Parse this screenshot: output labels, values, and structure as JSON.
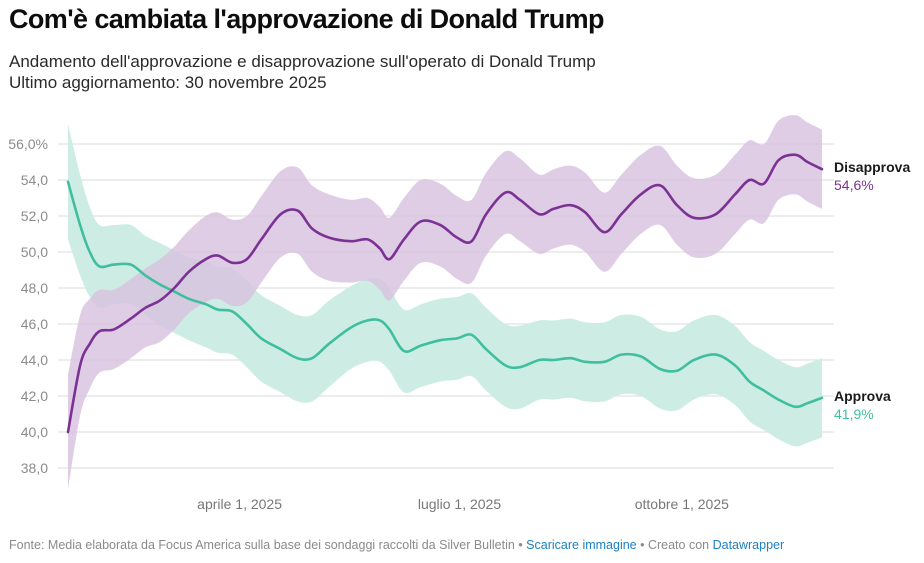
{
  "header": {
    "title": "Com'è cambiata l'approvazione di Donald Trump",
    "subtitle": "Andamento dell'approvazione e disapprovazione sull'operato di Donald Trump",
    "updated": "Ultimo aggiornamento: 30 novembre 2025"
  },
  "footer": {
    "source": "Fonte: Media elaborata da Focus America sulla base dei sondaggi raccolti da Silver Bulletin",
    "sep1": " • ",
    "download_link": "Scaricare immagine",
    "sep2": " • Creato con ",
    "credit_link": "Datawrapper"
  },
  "chart_data": {
    "type": "line",
    "title": "Com'è cambiata l'approvazione di Donald Trump",
    "xlabel": "",
    "ylabel": "",
    "ylim": [
      37,
      57.5
    ],
    "xlim": [
      "2025-01-20",
      "2025-11-28"
    ],
    "grid": true,
    "legend": "direct-labels-right",
    "y_ticks": [
      38,
      40,
      42,
      44,
      46,
      48,
      50,
      52,
      54,
      56
    ],
    "y_tick_labels": [
      "38,0",
      "40,0",
      "42,0",
      "44,0",
      "46,0",
      "48,0",
      "50,0",
      "52,0",
      "54,0",
      "56,0%"
    ],
    "x_ticks": [
      "2025-04-01",
      "2025-07-01",
      "2025-10-01"
    ],
    "x_tick_labels": [
      "aprile 1, 2025",
      "luglio 1, 2025",
      "ottobre 1, 2025"
    ],
    "x": [
      "2025-01-20",
      "2025-01-25",
      "2025-01-29",
      "2025-02-02",
      "2025-02-08",
      "2025-02-15",
      "2025-02-21",
      "2025-02-27",
      "2025-03-05",
      "2025-03-11",
      "2025-03-18",
      "2025-03-23",
      "2025-03-29",
      "2025-04-04",
      "2025-04-10",
      "2025-04-18",
      "2025-04-25",
      "2025-05-01",
      "2025-05-08",
      "2025-05-17",
      "2025-05-24",
      "2025-05-29",
      "2025-06-02",
      "2025-06-08",
      "2025-06-15",
      "2025-06-23",
      "2025-06-30",
      "2025-07-06",
      "2025-07-12",
      "2025-07-20",
      "2025-07-26",
      "2025-08-03",
      "2025-08-09",
      "2025-08-16",
      "2025-08-22",
      "2025-08-30",
      "2025-09-06",
      "2025-09-14",
      "2025-09-22",
      "2025-09-29",
      "2025-10-06",
      "2025-10-15",
      "2025-10-23",
      "2025-10-29",
      "2025-11-04",
      "2025-11-10",
      "2025-11-17",
      "2025-11-22",
      "2025-11-28"
    ],
    "series": [
      {
        "name": "Disapprova",
        "last_label": "54,6%",
        "color": "#7b3294",
        "band_color": "#d8c2df",
        "values": [
          40.0,
          43.7,
          44.9,
          45.6,
          45.7,
          46.3,
          46.9,
          47.3,
          48.0,
          48.9,
          49.6,
          49.8,
          49.4,
          49.6,
          50.7,
          52.1,
          52.3,
          51.3,
          50.8,
          50.6,
          50.7,
          50.2,
          49.6,
          50.7,
          51.7,
          51.5,
          50.8,
          50.6,
          52.1,
          53.3,
          52.9,
          52.1,
          52.4,
          52.6,
          52.2,
          51.1,
          52.1,
          53.2,
          53.7,
          52.6,
          51.9,
          52.1,
          53.2,
          54.0,
          53.8,
          55.1,
          55.4,
          55.0,
          54.6
        ],
        "margin": [
          3.2,
          2.8,
          2.5,
          2.3,
          2.2,
          2.2,
          2.2,
          2.3,
          2.3,
          2.3,
          2.4,
          2.4,
          2.4,
          2.4,
          2.4,
          2.4,
          2.4,
          2.4,
          2.4,
          2.3,
          2.3,
          2.3,
          2.3,
          2.3,
          2.3,
          2.3,
          2.3,
          2.3,
          2.3,
          2.3,
          2.3,
          2.2,
          2.2,
          2.2,
          2.2,
          2.2,
          2.2,
          2.2,
          2.2,
          2.2,
          2.2,
          2.2,
          2.2,
          2.2,
          2.2,
          2.2,
          2.2,
          2.2,
          2.2
        ]
      },
      {
        "name": "Approva",
        "last_label": "41,9%",
        "color": "#3fbf9f",
        "band_color": "#cdede4",
        "values": [
          53.9,
          51.5,
          50.0,
          49.2,
          49.3,
          49.3,
          48.7,
          48.2,
          47.8,
          47.4,
          47.1,
          46.8,
          46.7,
          46.0,
          45.2,
          44.6,
          44.1,
          44.1,
          44.9,
          45.8,
          46.2,
          46.2,
          45.7,
          44.5,
          44.8,
          45.1,
          45.2,
          45.4,
          44.6,
          43.7,
          43.6,
          44.0,
          44.0,
          44.1,
          43.9,
          43.9,
          44.3,
          44.2,
          43.5,
          43.4,
          44.0,
          44.3,
          43.7,
          42.8,
          42.3,
          41.8,
          41.4,
          41.6,
          41.9
        ],
        "margin": [
          3.2,
          2.8,
          2.5,
          2.3,
          2.2,
          2.2,
          2.2,
          2.3,
          2.3,
          2.3,
          2.4,
          2.4,
          2.4,
          2.4,
          2.4,
          2.4,
          2.4,
          2.4,
          2.4,
          2.3,
          2.3,
          2.3,
          2.3,
          2.3,
          2.3,
          2.3,
          2.3,
          2.3,
          2.3,
          2.3,
          2.3,
          2.2,
          2.2,
          2.2,
          2.2,
          2.2,
          2.2,
          2.2,
          2.2,
          2.2,
          2.2,
          2.2,
          2.2,
          2.2,
          2.2,
          2.2,
          2.2,
          2.2,
          2.2
        ]
      }
    ]
  }
}
